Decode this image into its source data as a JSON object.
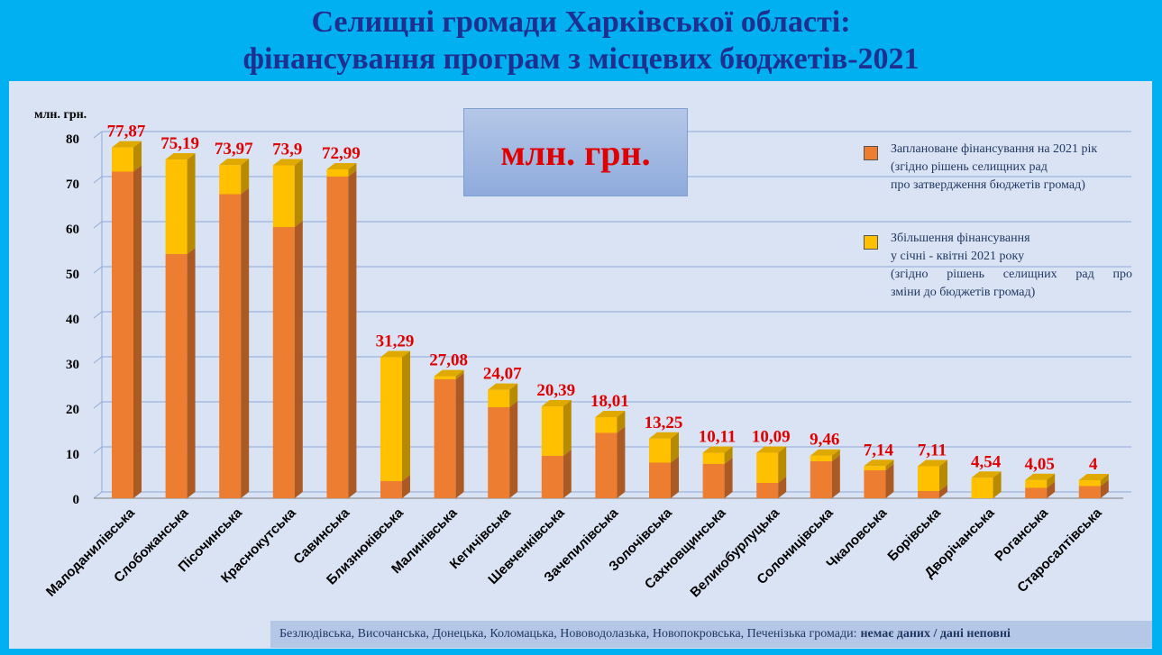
{
  "title": {
    "line1": "Селищні громади Харківської області:",
    "line2": "фінансування програм з місцевих бюджетів-2021"
  },
  "unit_box": "млн. грн.",
  "legend": {
    "planned": {
      "line1": "Заплановане фінансування на 2021 рік",
      "line2": "(згідно рішень селищних рад",
      "line3": "про затвердження бюджетів громад)"
    },
    "increase": {
      "line1": "Збільшення фінансування",
      "line2": "у січні - квітні 2021 року",
      "line3": "(згідно рішень селищних рад про",
      "line4": "зміни до бюджетів громад)"
    }
  },
  "footer": {
    "text": "Безлюдівська, Височанська, Донецька, Коломацька, Нововодолазька, Новопокровська, Печенізька громади:",
    "bold": "немає даних / дані неповні"
  },
  "colors": {
    "planned": "#ed7d31",
    "increase": "#ffc000",
    "label": "#e00000"
  },
  "chart_data": {
    "type": "bar",
    "stacked": true,
    "ylabel": "млн. грн.",
    "ylim": [
      0,
      80
    ],
    "yticks": [
      0,
      10,
      20,
      30,
      40,
      50,
      60,
      70,
      80
    ],
    "grid": true,
    "legend_position": "right",
    "categories": [
      "Малоданилівська",
      "Слобожанська",
      "Пісочинська",
      "Краснокутська",
      "Савинська",
      "Близнюківська",
      "Малинівська",
      "Кегичівська",
      "Шевченківська",
      "Зачепилівська",
      "Золочівська",
      "Сахновщинська",
      "Великобурлуцька",
      "Солоницівська",
      "Чкаловська",
      "Борівська",
      "Дворічанська",
      "Роганська",
      "Старосалтівська"
    ],
    "series": [
      {
        "name": "Заплановане фінансування на 2021 рік",
        "values": [
          72.5,
          54.2,
          67.5,
          60.2,
          71.4,
          3.8,
          26.4,
          20.2,
          9.4,
          14.5,
          7.9,
          7.6,
          3.4,
          8.2,
          6.2,
          1.6,
          0,
          2.3,
          2.7
        ]
      },
      {
        "name": "Збільшення фінансування у січні - квітні 2021 року",
        "values": [
          5.37,
          20.99,
          6.47,
          13.7,
          1.59,
          27.49,
          0.68,
          3.87,
          10.99,
          3.51,
          5.35,
          2.51,
          6.69,
          1.26,
          0.94,
          5.51,
          4.54,
          1.75,
          1.3
        ]
      }
    ],
    "totals": [
      "77,87",
      "75,19",
      "73,97",
      "73,9",
      "72,99",
      "31,29",
      "27,08",
      "24,07",
      "20,39",
      "18,01",
      "13,25",
      "10,11",
      "10,09",
      "9,46",
      "7,14",
      "7,11",
      "4,54",
      "4,05",
      "4"
    ]
  }
}
